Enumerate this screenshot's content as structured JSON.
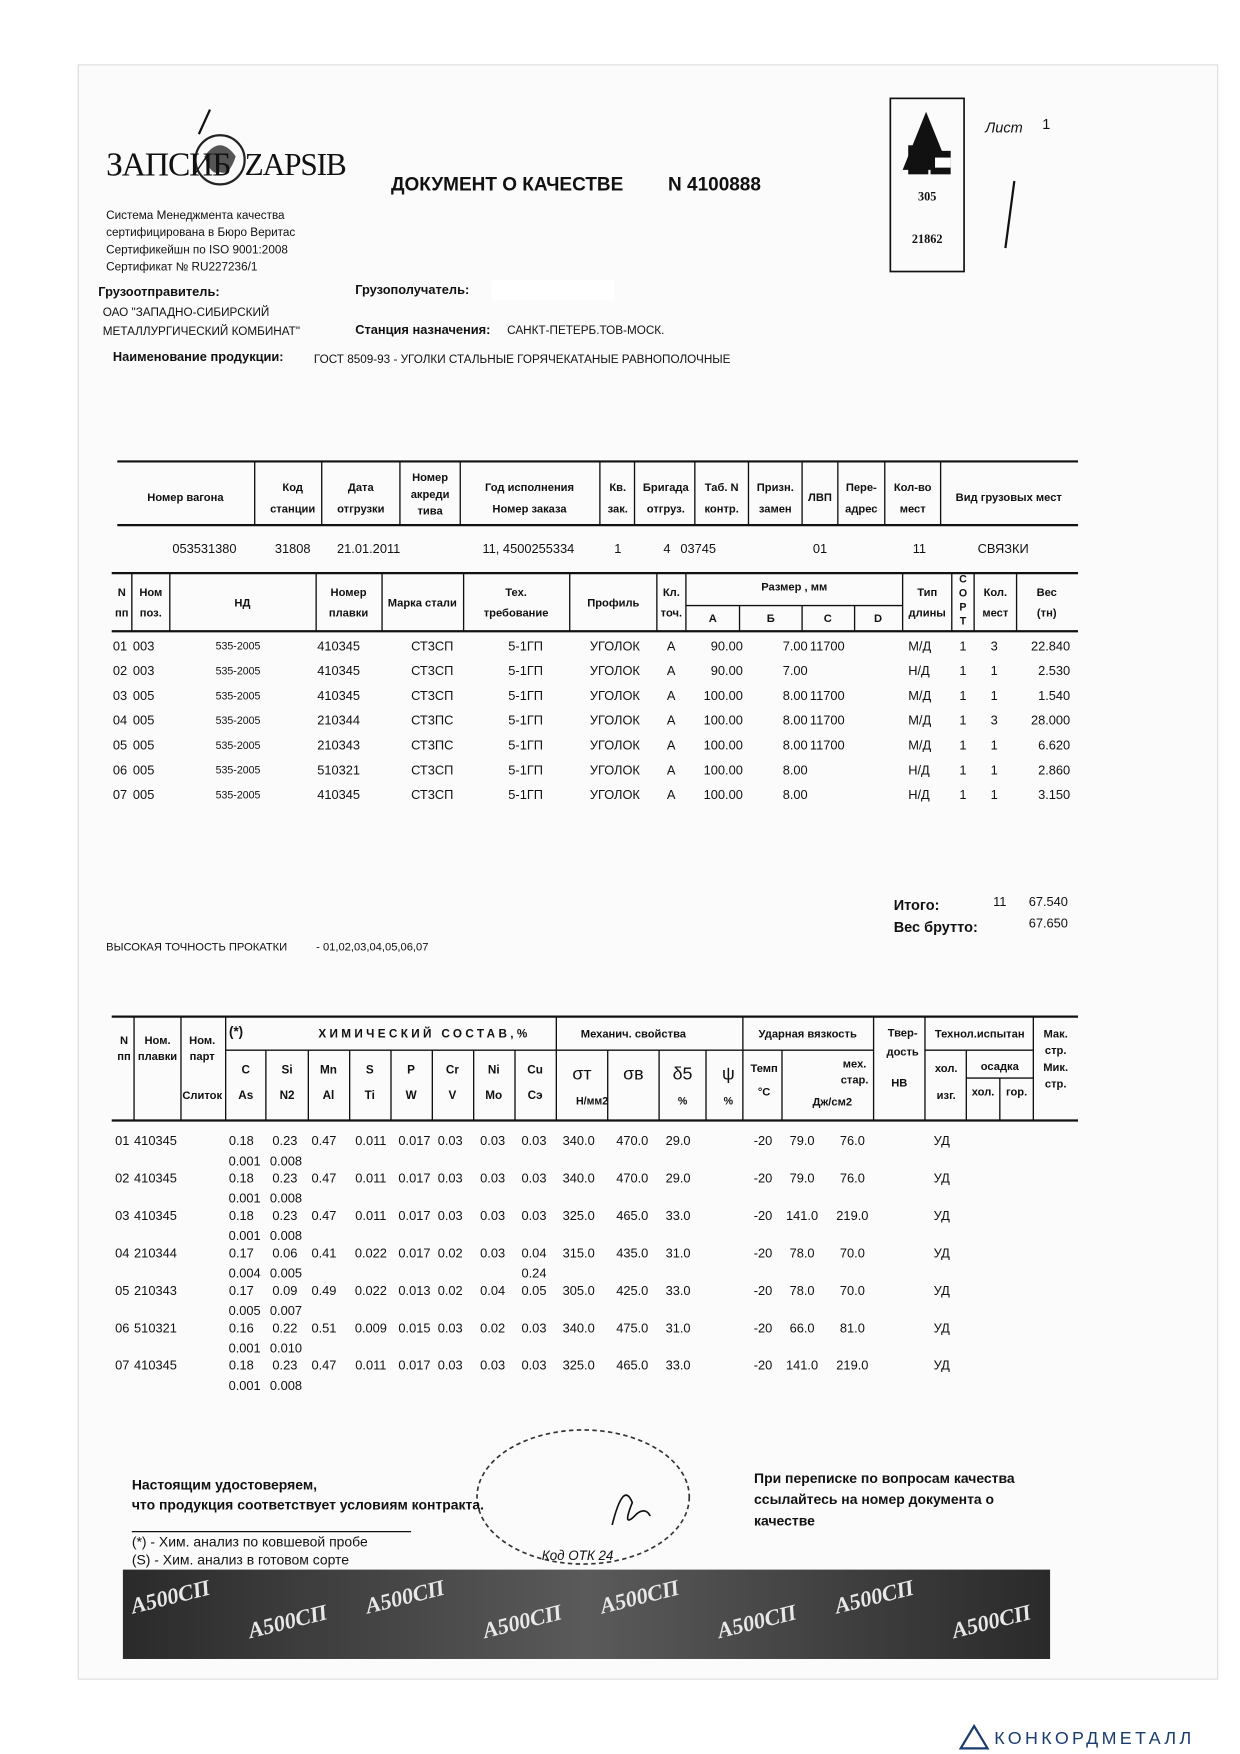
{
  "header": {
    "logo": [
      "ЗАПСИБ",
      "ZAPSIB"
    ],
    "certification": [
      "Система  Менеджмента  качества",
      "сертифицирована в Бюро Веритас",
      "Сертификейшн по ISO  9001:2008",
      "Сертификат № RU227236/1"
    ],
    "title": "ДОКУМЕНТ О КАЧЕСТВЕ",
    "number": "N 4100888",
    "mark_codes": [
      "305",
      "21862"
    ],
    "sheet_label": "Лист",
    "sheet": "1"
  },
  "parties": {
    "shipper_label": "Грузоотправитель:",
    "shipper": [
      "ОАО \"ЗАПАДНО-СИБИРСКИЙ",
      "МЕТАЛЛУРГИЧЕСКИЙ КОМБИНАТ\""
    ],
    "consignee_label": "Грузополучатель:",
    "station_label": "Станция назначения:",
    "station": "САНКТ-ПЕТЕРБ.ТОВ-МОСК.",
    "product_label": "Наименование  продукции:",
    "product": "ГОСТ 8509-93  -  УГОЛКИ СТАЛЬНЫЕ ГОРЯЧЕКАТАНЫЕ РАВНОПОЛОЧНЫЕ"
  },
  "wagon_table": {
    "headers": [
      [
        "Номер вагона"
      ],
      [
        "Код",
        "станции"
      ],
      [
        "Дата",
        "отгрузки"
      ],
      [
        "Номер",
        "акреди",
        "тива"
      ],
      [
        "Год исполнения",
        "Номер заказа"
      ],
      [
        "Кв.",
        "зак."
      ],
      [
        "Бригада",
        "отгруз."
      ],
      [
        "Таб. N",
        "контр."
      ],
      [
        "Призн.",
        "замен"
      ],
      [
        "ЛВП"
      ],
      [
        "Пере-",
        "адрес"
      ],
      [
        "Кол-во",
        "мест"
      ],
      [
        "Вид  грузовых мест"
      ]
    ],
    "row": [
      "053531380",
      "31808",
      "21.01.2011",
      null,
      "11, 4500255334",
      "1",
      "4",
      "03745",
      null,
      "01",
      null,
      "11",
      "СВЯЗКИ"
    ]
  },
  "product_table": {
    "headers": [
      [
        "N",
        "пп"
      ],
      [
        "Ном",
        "поз."
      ],
      [
        "НД"
      ],
      [
        "Номер",
        "плавки"
      ],
      [
        "Марка стали"
      ],
      [
        "Тех.",
        "требование"
      ],
      [
        "Профиль"
      ],
      [
        "Кл.",
        "точ."
      ],
      [
        "Тип",
        "длины"
      ],
      [
        "С",
        "О",
        "Р",
        "Т"
      ],
      [
        "Кол.",
        "мест"
      ],
      [
        "Вес",
        "(тн)"
      ]
    ],
    "size_header": "Размер , мм",
    "size_sub": [
      "А",
      "Б",
      "С",
      "D"
    ],
    "rows": [
      [
        "01",
        "003",
        "535-2005",
        "410345",
        "СТ3СП",
        "5-1ГП",
        "УГОЛОК",
        "А",
        "90.00",
        "7.00",
        "11700",
        null,
        "М/Д",
        "1",
        "3",
        "22.840"
      ],
      [
        "02",
        "003",
        "535-2005",
        "410345",
        "СТ3СП",
        "5-1ГП",
        "УГОЛОК",
        "А",
        "90.00",
        "7.00",
        null,
        null,
        "Н/Д",
        "1",
        "1",
        "2.530"
      ],
      [
        "03",
        "005",
        "535-2005",
        "410345",
        "СТ3СП",
        "5-1ГП",
        "УГОЛОК",
        "А",
        "100.00",
        "8.00",
        "11700",
        null,
        "М/Д",
        "1",
        "1",
        "1.540"
      ],
      [
        "04",
        "005",
        "535-2005",
        "210344",
        "СТ3ПС",
        "5-1ГП",
        "УГОЛОК",
        "А",
        "100.00",
        "8.00",
        "11700",
        null,
        "М/Д",
        "1",
        "3",
        "28.000"
      ],
      [
        "05",
        "005",
        "535-2005",
        "210343",
        "СТ3ПС",
        "5-1ГП",
        "УГОЛОК",
        "А",
        "100.00",
        "8.00",
        "11700",
        null,
        "М/Д",
        "1",
        "1",
        "6.620"
      ],
      [
        "06",
        "005",
        "535-2005",
        "510321",
        "СТ3СП",
        "5-1ГП",
        "УГОЛОК",
        "А",
        "100.00",
        "8.00",
        null,
        null,
        "Н/Д",
        "1",
        "1",
        "2.860"
      ],
      [
        "07",
        "005",
        "535-2005",
        "410345",
        "СТ3СП",
        "5-1ГП",
        "УГОЛОК",
        "А",
        "100.00",
        "8.00",
        null,
        null,
        "Н/Д",
        "1",
        "1",
        "3.150"
      ]
    ]
  },
  "totals": {
    "total_label": "Итого:",
    "places": "11",
    "net": "67.540",
    "gross_label": "Вес брутто:",
    "gross": "67.650"
  },
  "precision": {
    "label": "ВЫСОКАЯ ТОЧНОСТЬ ПРОКАТКИ",
    "rows": "- 01,02,03,04,05,06,07"
  },
  "chem_table": {
    "col_headers": [
      [
        "N",
        "пп"
      ],
      [
        "Ном.",
        "плавки"
      ],
      [
        "Ном.",
        "парт"
      ]
    ],
    "ingot": "Слиток",
    "note_mark": "(*)",
    "chem_title": "ХИМИЧЕСКИЙ СОСТАВ,%",
    "elements": [
      [
        "C",
        "As"
      ],
      [
        "Si",
        "N2"
      ],
      [
        "Mn",
        "Al"
      ],
      [
        "S",
        "Ti"
      ],
      [
        "P",
        "W"
      ],
      [
        "Cr",
        "V"
      ],
      [
        "Ni",
        "Mo"
      ],
      [
        "Cu",
        "Сэ"
      ]
    ],
    "mech_title": "Механич. свойства",
    "mech": [
      "σт",
      "σв",
      "δ5",
      "ψ"
    ],
    "mech_units": [
      "Н/мм2",
      "%",
      "%"
    ],
    "impact_title": "Ударная вязкость",
    "impact_temp": [
      "Темп",
      "°С"
    ],
    "impact_aging": [
      "мех.",
      "стар."
    ],
    "impact_unit": "Дж/см2",
    "hardness": [
      "Твер-",
      "дость"
    ],
    "hardness_unit": "HB",
    "tech_title": "Технол.испытан",
    "tech_bend": [
      "хол.",
      "изг."
    ],
    "tech_upset": "осадка",
    "tech_upset_sub": [
      "хол.",
      "гор."
    ],
    "structure": [
      "Мак.",
      "стр.",
      "Мик.",
      "стр."
    ],
    "rows": [
      {
        "line1": [
          "01",
          "410345",
          "0.18",
          "0.23",
          "0.47",
          "0.011",
          "0.017",
          "0.03",
          "0.03",
          "0.03",
          "340.0",
          "470.0",
          "29.0",
          "-20",
          "79.0",
          "76.0",
          "УД"
        ],
        "line2": [
          "0.001",
          "0.008",
          null,
          null,
          null,
          null,
          null,
          null
        ]
      },
      {
        "line1": [
          "02",
          "410345",
          "0.18",
          "0.23",
          "0.47",
          "0.011",
          "0.017",
          "0.03",
          "0.03",
          "0.03",
          "340.0",
          "470.0",
          "29.0",
          "-20",
          "79.0",
          "76.0",
          "УД"
        ],
        "line2": [
          "0.001",
          "0.008",
          null,
          null,
          null,
          null,
          null,
          null
        ]
      },
      {
        "line1": [
          "03",
          "410345",
          "0.18",
          "0.23",
          "0.47",
          "0.011",
          "0.017",
          "0.03",
          "0.03",
          "0.03",
          "325.0",
          "465.0",
          "33.0",
          "-20",
          "141.0",
          "219.0",
          "УД"
        ],
        "line2": [
          "0.001",
          "0.008",
          null,
          null,
          null,
          null,
          null,
          null
        ]
      },
      {
        "line1": [
          "04",
          "210344",
          "0.17",
          "0.06",
          "0.41",
          "0.022",
          "0.017",
          "0.02",
          "0.03",
          "0.04",
          "315.0",
          "435.0",
          "31.0",
          "-20",
          "78.0",
          "70.0",
          "УД"
        ],
        "line2": [
          "0.004",
          "0.005",
          null,
          null,
          null,
          null,
          null,
          "0.24"
        ]
      },
      {
        "line1": [
          "05",
          "210343",
          "0.17",
          "0.09",
          "0.49",
          "0.022",
          "0.013",
          "0.02",
          "0.04",
          "0.05",
          "305.0",
          "425.0",
          "33.0",
          "-20",
          "78.0",
          "70.0",
          "УД"
        ],
        "line2": [
          "0.005",
          "0.007",
          null,
          null,
          null,
          null,
          null,
          null
        ]
      },
      {
        "line1": [
          "06",
          "510321",
          "0.16",
          "0.22",
          "0.51",
          "0.009",
          "0.015",
          "0.03",
          "0.02",
          "0.03",
          "340.0",
          "475.0",
          "31.0",
          "-20",
          "66.0",
          "81.0",
          "УД"
        ],
        "line2": [
          "0.001",
          "0.010",
          null,
          null,
          null,
          null,
          null,
          null
        ]
      },
      {
        "line1": [
          "07",
          "410345",
          "0.18",
          "0.23",
          "0.47",
          "0.011",
          "0.017",
          "0.03",
          "0.03",
          "0.03",
          "325.0",
          "465.0",
          "33.0",
          "-20",
          "141.0",
          "219.0",
          "УД"
        ],
        "line2": [
          "0.001",
          "0.008",
          null,
          null,
          null,
          null,
          null,
          null
        ]
      }
    ]
  },
  "footer": {
    "certify": [
      "Настоящим удостоверяем,",
      "что продукция соответствует условиям контракта."
    ],
    "notes": [
      "(*) - Хим. анализ по ковшевой пробе",
      "(S) - Хим. анализ в готовом сорте"
    ],
    "correspondence": [
      "При переписке по вопросам качества",
      "ссылайтесь на номер документа о",
      "качестве"
    ],
    "qc_code": "Код ОТК 24",
    "banner_text": "А500СП"
  },
  "watermark": "КОНКОРДМЕТАЛЛ"
}
